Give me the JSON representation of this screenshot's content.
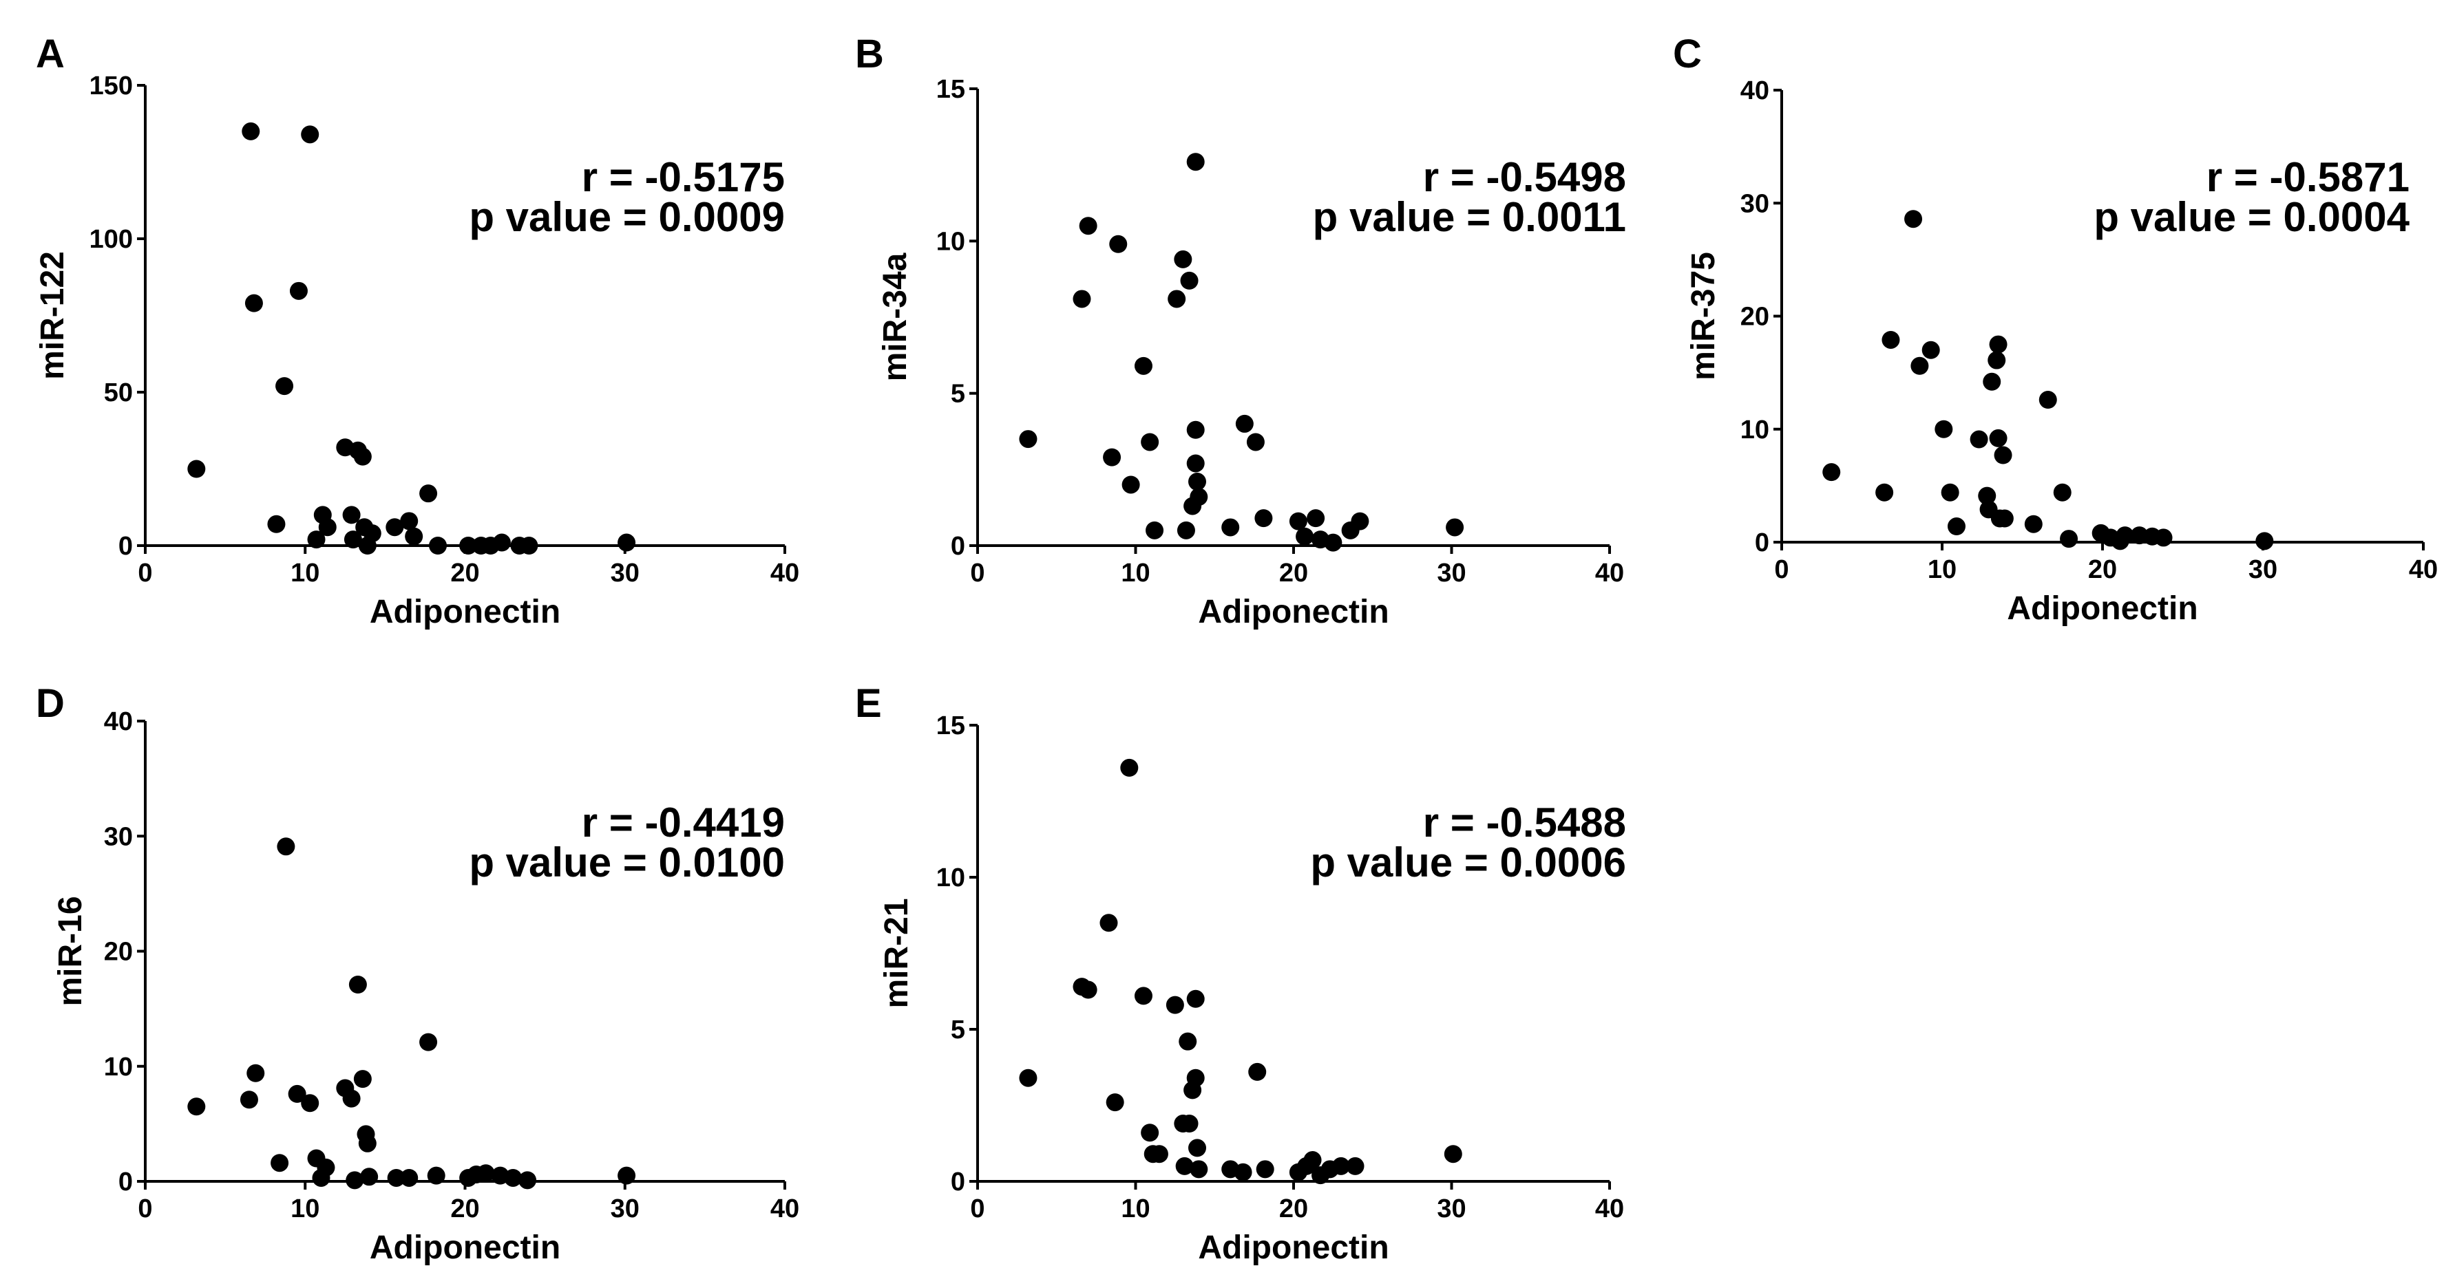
{
  "chart_data": [
    {
      "type": "scatter",
      "panel": "A",
      "title": "",
      "xlabel": "Adiponectin",
      "ylabel": "miR-122",
      "xlim": [
        0,
        40
      ],
      "ylim": [
        0,
        150
      ],
      "x_ticks": [
        "0",
        "10",
        "20",
        "30",
        "40"
      ],
      "y_ticks": [
        "0",
        "50",
        "100",
        "150"
      ],
      "r_text": "r = -0.5175",
      "p_text": "p value = 0.0009",
      "points": [
        {
          "x": 3.2,
          "y": 25
        },
        {
          "x": 6.6,
          "y": 135
        },
        {
          "x": 6.8,
          "y": 79
        },
        {
          "x": 8.2,
          "y": 7
        },
        {
          "x": 8.7,
          "y": 52
        },
        {
          "x": 9.6,
          "y": 83
        },
        {
          "x": 10.3,
          "y": 134
        },
        {
          "x": 10.7,
          "y": 2
        },
        {
          "x": 11.1,
          "y": 10
        },
        {
          "x": 11.4,
          "y": 6
        },
        {
          "x": 12.5,
          "y": 32
        },
        {
          "x": 12.9,
          "y": 10
        },
        {
          "x": 13.0,
          "y": 2
        },
        {
          "x": 13.3,
          "y": 31
        },
        {
          "x": 13.6,
          "y": 29
        },
        {
          "x": 13.7,
          "y": 6
        },
        {
          "x": 13.9,
          "y": 0
        },
        {
          "x": 14.2,
          "y": 4
        },
        {
          "x": 15.6,
          "y": 6
        },
        {
          "x": 16.5,
          "y": 8
        },
        {
          "x": 16.8,
          "y": 3
        },
        {
          "x": 17.7,
          "y": 17
        },
        {
          "x": 18.3,
          "y": 0
        },
        {
          "x": 20.2,
          "y": 0
        },
        {
          "x": 21.0,
          "y": 0
        },
        {
          "x": 21.6,
          "y": 0
        },
        {
          "x": 22.3,
          "y": 1
        },
        {
          "x": 23.4,
          "y": 0
        },
        {
          "x": 24.0,
          "y": 0
        },
        {
          "x": 30.1,
          "y": 1
        }
      ]
    },
    {
      "type": "scatter",
      "panel": "B",
      "title": "",
      "xlabel": "Adiponectin",
      "ylabel": "miR-34a",
      "xlim": [
        0,
        40
      ],
      "ylim": [
        0,
        15
      ],
      "x_ticks": [
        "0",
        "10",
        "20",
        "30",
        "40"
      ],
      "y_ticks": [
        "0",
        "5",
        "10",
        "15"
      ],
      "r_text": "r = -0.5498",
      "p_text": "p value = 0.0011",
      "points": [
        {
          "x": 3.2,
          "y": 3.5
        },
        {
          "x": 6.6,
          "y": 8.1
        },
        {
          "x": 7.0,
          "y": 10.5
        },
        {
          "x": 8.5,
          "y": 2.9
        },
        {
          "x": 8.9,
          "y": 9.9
        },
        {
          "x": 9.7,
          "y": 2.0
        },
        {
          "x": 10.5,
          "y": 5.9
        },
        {
          "x": 10.9,
          "y": 3.4
        },
        {
          "x": 11.2,
          "y": 0.5
        },
        {
          "x": 12.6,
          "y": 8.1
        },
        {
          "x": 13.0,
          "y": 9.4
        },
        {
          "x": 13.2,
          "y": 0.5
        },
        {
          "x": 13.4,
          "y": 8.7
        },
        {
          "x": 13.6,
          "y": 1.3
        },
        {
          "x": 13.8,
          "y": 12.6
        },
        {
          "x": 13.8,
          "y": 3.8
        },
        {
          "x": 13.8,
          "y": 2.7
        },
        {
          "x": 13.9,
          "y": 2.1
        },
        {
          "x": 14.0,
          "y": 1.6
        },
        {
          "x": 16.0,
          "y": 0.6
        },
        {
          "x": 16.9,
          "y": 4.0
        },
        {
          "x": 17.6,
          "y": 3.4
        },
        {
          "x": 18.1,
          "y": 0.9
        },
        {
          "x": 20.3,
          "y": 0.8
        },
        {
          "x": 20.7,
          "y": 0.3
        },
        {
          "x": 21.4,
          "y": 0.9
        },
        {
          "x": 21.7,
          "y": 0.2
        },
        {
          "x": 22.5,
          "y": 0.1
        },
        {
          "x": 23.6,
          "y": 0.5
        },
        {
          "x": 24.2,
          "y": 0.8
        },
        {
          "x": 30.2,
          "y": 0.6
        }
      ]
    },
    {
      "type": "scatter",
      "panel": "C",
      "title": "",
      "xlabel": "Adiponectin",
      "ylabel": "miR-375",
      "xlim": [
        0,
        40
      ],
      "ylim": [
        0,
        40
      ],
      "x_ticks": [
        "0",
        "10",
        "20",
        "30",
        "40"
      ],
      "y_ticks": [
        "0",
        "10",
        "20",
        "30",
        "40"
      ],
      "r_text": "r = -0.5871",
      "p_text": "p value = 0.0004",
      "points": [
        {
          "x": 3.1,
          "y": 6.2
        },
        {
          "x": 6.4,
          "y": 4.4
        },
        {
          "x": 6.8,
          "y": 17.9
        },
        {
          "x": 8.2,
          "y": 28.6
        },
        {
          "x": 8.6,
          "y": 15.6
        },
        {
          "x": 9.3,
          "y": 17.0
        },
        {
          "x": 10.1,
          "y": 10.0
        },
        {
          "x": 10.5,
          "y": 4.4
        },
        {
          "x": 10.9,
          "y": 1.4
        },
        {
          "x": 12.3,
          "y": 9.1
        },
        {
          "x": 12.8,
          "y": 4.1
        },
        {
          "x": 12.9,
          "y": 2.9
        },
        {
          "x": 13.1,
          "y": 14.2
        },
        {
          "x": 13.4,
          "y": 16.1
        },
        {
          "x": 13.5,
          "y": 17.5
        },
        {
          "x": 13.5,
          "y": 9.2
        },
        {
          "x": 13.6,
          "y": 2.1
        },
        {
          "x": 13.8,
          "y": 7.7
        },
        {
          "x": 13.9,
          "y": 2.1
        },
        {
          "x": 15.7,
          "y": 1.6
        },
        {
          "x": 16.6,
          "y": 12.6
        },
        {
          "x": 17.5,
          "y": 4.4
        },
        {
          "x": 17.9,
          "y": 0.3
        },
        {
          "x": 19.9,
          "y": 0.8
        },
        {
          "x": 20.5,
          "y": 0.4
        },
        {
          "x": 21.1,
          "y": 0.1
        },
        {
          "x": 21.4,
          "y": 0.6
        },
        {
          "x": 22.3,
          "y": 0.6
        },
        {
          "x": 23.1,
          "y": 0.5
        },
        {
          "x": 23.8,
          "y": 0.4
        },
        {
          "x": 30.1,
          "y": 0.1
        }
      ]
    },
    {
      "type": "scatter",
      "panel": "D",
      "title": "",
      "xlabel": "Adiponectin",
      "ylabel": "miR-16",
      "xlim": [
        0,
        40
      ],
      "ylim": [
        0,
        40
      ],
      "x_ticks": [
        "0",
        "10",
        "20",
        "30",
        "40"
      ],
      "y_ticks": [
        "0",
        "10",
        "20",
        "30",
        "40"
      ],
      "r_text": "r = -0.4419",
      "p_text": "p value = 0.0100",
      "points": [
        {
          "x": 3.2,
          "y": 6.5
        },
        {
          "x": 6.5,
          "y": 7.1
        },
        {
          "x": 6.9,
          "y": 9.4
        },
        {
          "x": 8.4,
          "y": 1.6
        },
        {
          "x": 8.8,
          "y": 29.1
        },
        {
          "x": 9.5,
          "y": 7.6
        },
        {
          "x": 10.3,
          "y": 6.8
        },
        {
          "x": 10.7,
          "y": 2.0
        },
        {
          "x": 11.0,
          "y": 0.3
        },
        {
          "x": 11.3,
          "y": 1.2
        },
        {
          "x": 12.5,
          "y": 8.1
        },
        {
          "x": 12.9,
          "y": 7.2
        },
        {
          "x": 13.1,
          "y": 0.1
        },
        {
          "x": 13.3,
          "y": 17.1
        },
        {
          "x": 13.6,
          "y": 8.9
        },
        {
          "x": 13.8,
          "y": 4.1
        },
        {
          "x": 13.9,
          "y": 3.3
        },
        {
          "x": 14.0,
          "y": 0.4
        },
        {
          "x": 15.7,
          "y": 0.3
        },
        {
          "x": 16.5,
          "y": 0.3
        },
        {
          "x": 17.7,
          "y": 12.1
        },
        {
          "x": 18.2,
          "y": 0.5
        },
        {
          "x": 20.2,
          "y": 0.3
        },
        {
          "x": 20.7,
          "y": 0.6
        },
        {
          "x": 21.3,
          "y": 0.7
        },
        {
          "x": 22.2,
          "y": 0.5
        },
        {
          "x": 23.0,
          "y": 0.3
        },
        {
          "x": 23.9,
          "y": 0.1
        },
        {
          "x": 30.1,
          "y": 0.5
        }
      ]
    },
    {
      "type": "scatter",
      "panel": "E",
      "title": "",
      "xlabel": "Adiponectin",
      "ylabel": "miR-21",
      "xlim": [
        0,
        40
      ],
      "ylim": [
        0,
        15
      ],
      "x_ticks": [
        "0",
        "10",
        "20",
        "30",
        "40"
      ],
      "y_ticks": [
        "0",
        "5",
        "10",
        "15"
      ],
      "r_text": "r = -0.5488",
      "p_text": "p value = 0.0006",
      "points": [
        {
          "x": 3.2,
          "y": 3.4
        },
        {
          "x": 6.6,
          "y": 6.4
        },
        {
          "x": 7.0,
          "y": 6.3
        },
        {
          "x": 8.3,
          "y": 8.5
        },
        {
          "x": 8.7,
          "y": 2.6
        },
        {
          "x": 9.6,
          "y": 13.6
        },
        {
          "x": 10.5,
          "y": 6.1
        },
        {
          "x": 10.9,
          "y": 1.6
        },
        {
          "x": 11.1,
          "y": 0.9
        },
        {
          "x": 11.5,
          "y": 0.9
        },
        {
          "x": 12.5,
          "y": 5.8
        },
        {
          "x": 13.0,
          "y": 1.9
        },
        {
          "x": 13.1,
          "y": 0.5
        },
        {
          "x": 13.3,
          "y": 4.6
        },
        {
          "x": 13.4,
          "y": 1.9
        },
        {
          "x": 13.6,
          "y": 3.0
        },
        {
          "x": 13.8,
          "y": 6.0
        },
        {
          "x": 13.8,
          "y": 3.4
        },
        {
          "x": 13.9,
          "y": 1.1
        },
        {
          "x": 14.0,
          "y": 0.4
        },
        {
          "x": 16.0,
          "y": 0.4
        },
        {
          "x": 16.8,
          "y": 0.3
        },
        {
          "x": 17.7,
          "y": 3.6
        },
        {
          "x": 18.2,
          "y": 0.4
        },
        {
          "x": 20.3,
          "y": 0.3
        },
        {
          "x": 20.8,
          "y": 0.5
        },
        {
          "x": 21.2,
          "y": 0.7
        },
        {
          "x": 21.7,
          "y": 0.2
        },
        {
          "x": 22.3,
          "y": 0.4
        },
        {
          "x": 23.0,
          "y": 0.5
        },
        {
          "x": 23.9,
          "y": 0.5
        },
        {
          "x": 30.1,
          "y": 0.9
        }
      ]
    }
  ]
}
